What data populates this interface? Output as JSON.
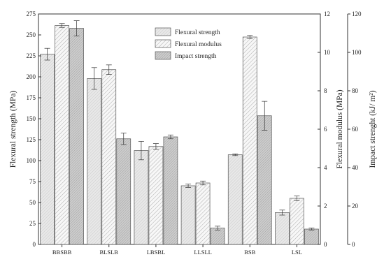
{
  "chart_data": {
    "type": "bar",
    "categories": [
      "BBSBB",
      "BLSLB",
      "LBSBL",
      "LLSLL",
      "BSB",
      "LSL"
    ],
    "series": [
      {
        "name": "Flexural strength",
        "axis": "left",
        "unit": "MPa",
        "values": [
          227,
          198,
          112,
          70,
          107,
          38
        ],
        "errors": [
          7,
          13,
          11,
          2,
          1,
          3
        ],
        "fill": "#e6e6e6",
        "pattern": "light-fine-hatch"
      },
      {
        "name": "Flexural modulus",
        "axis": "right1",
        "unit": "MPa",
        "values": [
          11.4,
          9.1,
          5.1,
          3.2,
          10.8,
          2.4
        ],
        "errors": [
          0.1,
          0.25,
          0.15,
          0.1,
          0.08,
          0.12
        ],
        "fill": "#f4f4f4",
        "pattern": "diagonal-hatch"
      },
      {
        "name": "Impact strength",
        "axis": "right2",
        "unit": "kJ/m²",
        "values": [
          112.5,
          55,
          56,
          8.5,
          67,
          8
        ],
        "errors": [
          4,
          3,
          1,
          1,
          7.5,
          0.5
        ],
        "fill": "#c8c8c8",
        "pattern": "dense-hatch"
      }
    ],
    "axes": {
      "left": {
        "label": "Flexural strength (MPa)",
        "range": [
          0,
          275
        ],
        "ticks": [
          0,
          25,
          50,
          75,
          100,
          125,
          150,
          175,
          200,
          225,
          250,
          275
        ]
      },
      "right1": {
        "label": "Flexural modulus (MPa)",
        "range": [
          0,
          12
        ],
        "ticks": [
          0,
          2,
          4,
          6,
          8,
          10,
          12
        ]
      },
      "right2": {
        "label": "Impact strenght (kJ/ m²)",
        "range": [
          0,
          120
        ],
        "ticks": [
          0,
          20,
          40,
          60,
          80,
          100,
          120
        ]
      }
    },
    "legend": {
      "placement": "top-center",
      "entries": [
        "Flexural strength",
        "Flexural modulus",
        "Impact strength"
      ]
    },
    "grid": false,
    "title": "",
    "xlabel": ""
  }
}
